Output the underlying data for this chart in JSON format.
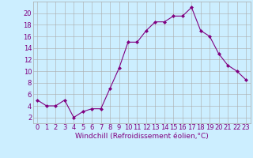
{
  "x": [
    0,
    1,
    2,
    3,
    4,
    5,
    6,
    7,
    8,
    9,
    10,
    11,
    12,
    13,
    14,
    15,
    16,
    17,
    18,
    19,
    20,
    21,
    22,
    23
  ],
  "y": [
    5,
    4,
    4,
    5,
    2,
    3,
    3.5,
    3.5,
    7,
    10.5,
    15,
    15,
    17,
    18.5,
    18.5,
    19.5,
    19.5,
    21,
    17,
    16,
    13,
    11,
    10,
    8.5
  ],
  "line_color": "#800080",
  "marker": "D",
  "marker_size": 2,
  "bg_color": "#cceeff",
  "grid_color": "#aaaaaa",
  "xlabel": "Windchill (Refroidissement éolien,°C)",
  "yticks": [
    2,
    4,
    6,
    8,
    10,
    12,
    14,
    16,
    18,
    20
  ],
  "xticks": [
    0,
    1,
    2,
    3,
    4,
    5,
    6,
    7,
    8,
    9,
    10,
    11,
    12,
    13,
    14,
    15,
    16,
    17,
    18,
    19,
    20,
    21,
    22,
    23
  ],
  "ylim": [
    1,
    22
  ],
  "xlim": [
    -0.5,
    23.5
  ],
  "label_color": "#800080",
  "xlabel_fontsize": 6.5,
  "tick_fontsize": 6
}
